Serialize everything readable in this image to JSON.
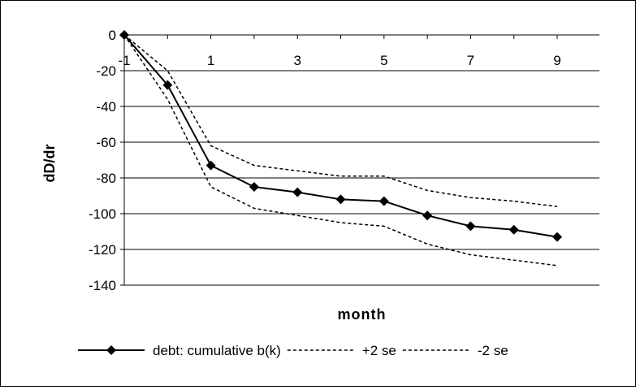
{
  "chart_data": {
    "type": "line",
    "x": [
      -1,
      0,
      1,
      2,
      3,
      4,
      5,
      6,
      7,
      8,
      9
    ],
    "x_tick_labels": [
      "-1",
      "1",
      "3",
      "5",
      "7",
      "9"
    ],
    "x_tick_values": [
      -1,
      1,
      3,
      5,
      7,
      9
    ],
    "y_tick_labels": [
      "0",
      "-20",
      "-40",
      "-60",
      "-80",
      "-100",
      "-120",
      "-140"
    ],
    "y_tick_values": [
      0,
      -20,
      -40,
      -60,
      -80,
      -100,
      -120,
      -140
    ],
    "ylim": [
      -140,
      0
    ],
    "xlim": [
      -1,
      9
    ],
    "xlabel": "month",
    "ylabel": "dD/dr",
    "grid": "horizontal",
    "legend_position": "bottom",
    "series": [
      {
        "name": "debt: cumulative b(k)",
        "style": "solid-diamond",
        "color": "#000000",
        "values": [
          0,
          -28,
          -73,
          -85,
          -88,
          -92,
          -93,
          -101,
          -107,
          -109,
          -113
        ]
      },
      {
        "name": "+2 se",
        "style": "dashed",
        "color": "#000000",
        "values": [
          0,
          -20,
          -62,
          -73,
          -76,
          -79,
          -79,
          -87,
          -91,
          -93,
          -96
        ]
      },
      {
        "name": "-2 se",
        "style": "dashed",
        "color": "#000000",
        "values": [
          0,
          -36,
          -85,
          -97,
          -101,
          -105,
          -107,
          -117,
          -123,
          -126,
          -129
        ]
      }
    ]
  }
}
